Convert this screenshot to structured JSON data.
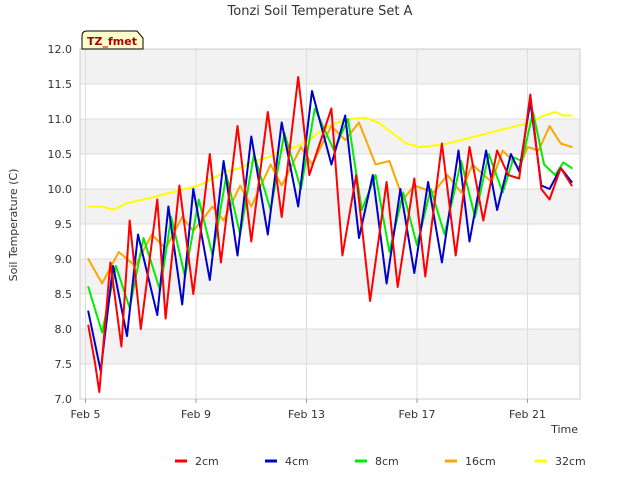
{
  "chart_data": {
    "type": "line",
    "title": "Tonzi Soil Temperature Set A",
    "xlabel": "Time",
    "ylabel": "Soil Temperature (C)",
    "badge": "TZ_fmet",
    "x_range": [
      4.8,
      22.9
    ],
    "ylim": [
      7.0,
      12.0
    ],
    "y_ticks": [
      7.0,
      7.5,
      8.0,
      8.5,
      9.0,
      9.5,
      10.0,
      10.5,
      11.0,
      11.5,
      12.0
    ],
    "y_tick_labels": [
      "7.0",
      "7.5",
      "8.0",
      "8.5",
      "9.0",
      "9.5",
      "10.0",
      "10.5",
      "11.0",
      "11.5",
      "12.0"
    ],
    "x_ticks": [
      5,
      9,
      13,
      17,
      21
    ],
    "x_tick_labels": [
      "Feb 5",
      "Feb 9",
      "Feb 13",
      "Feb 17",
      "Feb 21"
    ],
    "grid": true,
    "legend_position": "bottom",
    "series": [
      {
        "name": "2cm",
        "color": "#ff0000",
        "x": [
          5.1,
          5.35,
          5.5,
          5.9,
          6.3,
          6.6,
          7.0,
          7.6,
          7.9,
          8.4,
          8.9,
          9.5,
          9.9,
          10.5,
          11.0,
          11.6,
          12.1,
          12.7,
          13.1,
          13.9,
          14.3,
          14.8,
          15.3,
          15.9,
          16.3,
          16.9,
          17.3,
          17.9,
          18.4,
          18.9,
          19.4,
          19.9,
          20.3,
          20.7,
          21.1,
          21.5,
          21.8,
          22.2,
          22.6
        ],
        "y": [
          8.05,
          7.5,
          7.1,
          8.95,
          7.75,
          9.55,
          8.0,
          9.85,
          8.15,
          10.05,
          8.5,
          10.5,
          8.95,
          10.9,
          9.25,
          11.1,
          9.6,
          11.6,
          10.2,
          11.15,
          9.05,
          10.2,
          8.4,
          10.1,
          8.6,
          10.15,
          8.75,
          10.65,
          9.05,
          10.6,
          9.55,
          10.55,
          10.2,
          10.15,
          11.35,
          10.0,
          9.85,
          10.3,
          10.05
        ]
      },
      {
        "name": "4cm",
        "color": "#0000cc",
        "x": [
          5.1,
          5.55,
          6.0,
          6.5,
          6.9,
          7.6,
          8.0,
          8.5,
          8.9,
          9.5,
          10.0,
          10.5,
          11.0,
          11.6,
          12.1,
          12.7,
          13.2,
          13.9,
          14.4,
          14.9,
          15.4,
          15.9,
          16.4,
          16.9,
          17.4,
          17.9,
          18.5,
          18.9,
          19.5,
          19.9,
          20.4,
          20.7,
          21.1,
          21.5,
          21.8,
          22.2,
          22.6
        ],
        "y": [
          8.25,
          7.4,
          8.9,
          7.9,
          9.35,
          8.2,
          9.75,
          8.35,
          10.0,
          8.7,
          10.4,
          9.05,
          10.75,
          9.35,
          10.95,
          9.75,
          11.4,
          10.35,
          11.05,
          9.3,
          10.2,
          8.65,
          10.0,
          8.8,
          10.1,
          8.95,
          10.55,
          9.25,
          10.55,
          9.7,
          10.5,
          10.25,
          11.25,
          10.05,
          10.0,
          10.3,
          10.1
        ]
      },
      {
        "name": "8cm",
        "color": "#00ee00",
        "x": [
          5.1,
          5.6,
          6.1,
          6.6,
          7.1,
          7.7,
          8.1,
          8.6,
          9.1,
          9.6,
          10.1,
          10.6,
          11.1,
          11.7,
          12.2,
          12.8,
          13.3,
          14.0,
          14.5,
          15.0,
          15.5,
          16.0,
          16.5,
          17.0,
          17.5,
          18.0,
          18.6,
          19.1,
          19.6,
          20.1,
          20.5,
          20.8,
          21.2,
          21.6,
          22.0,
          22.3,
          22.6
        ],
        "y": [
          8.6,
          7.95,
          8.9,
          8.3,
          9.3,
          8.55,
          9.6,
          8.75,
          9.85,
          9.05,
          10.2,
          9.35,
          10.5,
          9.7,
          10.8,
          10.0,
          11.15,
          10.55,
          11.0,
          9.7,
          10.2,
          9.1,
          9.95,
          9.2,
          10.0,
          9.35,
          10.4,
          9.6,
          10.5,
          9.95,
          10.45,
          10.4,
          11.1,
          10.35,
          10.2,
          10.38,
          10.3
        ]
      },
      {
        "name": "16cm",
        "color": "#ffa500",
        "x": [
          5.1,
          5.6,
          6.2,
          6.8,
          7.4,
          7.9,
          8.5,
          8.9,
          9.6,
          10.0,
          10.6,
          11.0,
          11.7,
          12.1,
          12.8,
          13.2,
          13.9,
          14.4,
          14.9,
          15.5,
          16.0,
          16.5,
          16.9,
          17.6,
          18.1,
          18.6,
          19.0,
          19.7,
          20.1,
          20.7,
          21.0,
          21.4,
          21.8,
          22.2,
          22.6
        ],
        "y": [
          9.0,
          8.65,
          9.1,
          8.9,
          9.35,
          9.15,
          9.6,
          9.4,
          9.75,
          9.55,
          10.05,
          9.75,
          10.35,
          10.05,
          10.6,
          10.35,
          10.9,
          10.7,
          10.95,
          10.35,
          10.4,
          9.85,
          10.05,
          9.95,
          10.2,
          9.95,
          10.35,
          10.1,
          10.55,
          10.3,
          10.6,
          10.55,
          10.9,
          10.65,
          10.6
        ]
      },
      {
        "name": "32cm",
        "color": "#ffff00",
        "x": [
          5.1,
          5.6,
          6.0,
          6.5,
          7.1,
          7.6,
          8.1,
          8.6,
          9.1,
          9.6,
          10.1,
          10.6,
          11.1,
          11.6,
          12.1,
          12.6,
          13.1,
          13.6,
          14.1,
          14.6,
          15.1,
          15.6,
          16.1,
          16.6,
          17.1,
          17.6,
          18.1,
          18.6,
          19.1,
          19.6,
          20.1,
          20.6,
          21.1,
          21.6,
          22.0,
          22.3,
          22.6
        ],
        "y": [
          9.75,
          9.75,
          9.7,
          9.8,
          9.85,
          9.9,
          9.95,
          10.0,
          10.05,
          10.15,
          10.25,
          10.3,
          10.4,
          10.45,
          10.55,
          10.6,
          10.7,
          10.85,
          10.95,
          11.0,
          11.02,
          10.95,
          10.8,
          10.65,
          10.6,
          10.62,
          10.65,
          10.7,
          10.75,
          10.8,
          10.85,
          10.9,
          10.95,
          11.05,
          11.1,
          11.05,
          11.05
        ]
      }
    ]
  }
}
